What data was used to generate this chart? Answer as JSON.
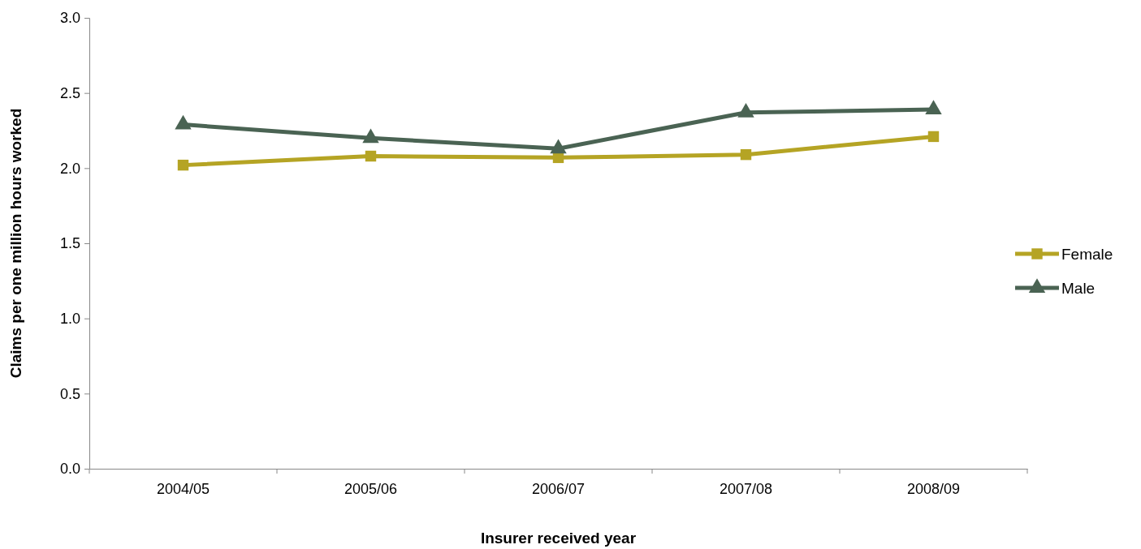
{
  "chart_data": {
    "type": "line",
    "xlabel": "Insurer received year",
    "ylabel": "Claims per one million hours worked",
    "categories": [
      "2004/05",
      "2005/06",
      "2006/07",
      "2007/08",
      "2008/09"
    ],
    "series": [
      {
        "name": "Female",
        "color": "#b5a424",
        "values": [
          2.02,
          2.08,
          2.07,
          2.09,
          2.21
        ],
        "marker": "square"
      },
      {
        "name": "Male",
        "color": "#4a6353",
        "values": [
          2.29,
          2.2,
          2.13,
          2.37,
          2.39
        ],
        "marker": "triangle"
      }
    ],
    "ylim": [
      0,
      3
    ],
    "yticks": [
      {
        "value": 0,
        "label": "0.0"
      },
      {
        "value": 0.5,
        "label": "0.5"
      },
      {
        "value": 1,
        "label": "1.0"
      },
      {
        "value": 1.5,
        "label": "1.5"
      },
      {
        "value": 2,
        "label": "2.0"
      },
      {
        "value": 2.5,
        "label": "2.5"
      },
      {
        "value": 3,
        "label": "3.0"
      }
    ],
    "grid": false,
    "legend": "right",
    "line_style": "solid"
  }
}
